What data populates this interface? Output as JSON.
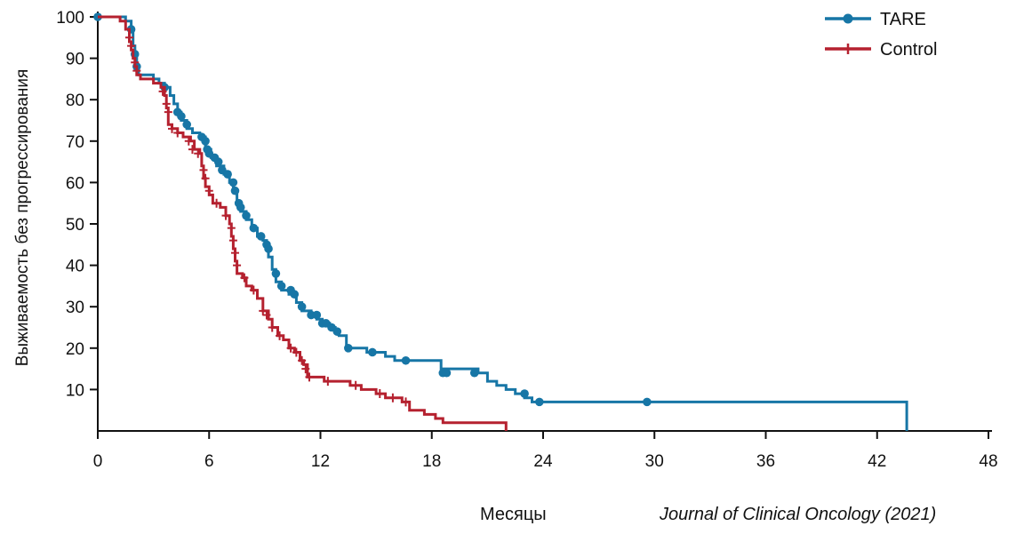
{
  "chart_data": {
    "type": "line",
    "subtype": "kaplan-meier",
    "ylabel": "Выживаемость без прогрессирования",
    "xlabel": "Месяцы",
    "citation": "Journal of Clinical Oncology (2021)",
    "xlim": [
      0,
      48
    ],
    "ylim": [
      0,
      100
    ],
    "xticks": [
      0,
      6,
      12,
      18,
      24,
      30,
      36,
      42,
      48
    ],
    "yticks": [
      10,
      20,
      30,
      40,
      50,
      60,
      70,
      80,
      90,
      100
    ],
    "grid": false,
    "legend_position": "top-right",
    "colors": {
      "TARE": "#1776a6",
      "Control": "#b5212f"
    },
    "series": [
      {
        "name": "TARE",
        "marker": "circle",
        "points": [
          [
            0,
            100
          ],
          [
            1.5,
            99
          ],
          [
            1.8,
            97
          ],
          [
            1.9,
            93
          ],
          [
            2.0,
            90
          ],
          [
            2.1,
            88
          ],
          [
            2.2,
            86
          ],
          [
            3.0,
            85
          ],
          [
            3.3,
            84
          ],
          [
            3.6,
            83
          ],
          [
            3.9,
            81
          ],
          [
            4.1,
            79
          ],
          [
            4.3,
            77
          ],
          [
            4.5,
            75
          ],
          [
            4.8,
            73
          ],
          [
            5.1,
            72
          ],
          [
            5.5,
            71
          ],
          [
            5.8,
            68
          ],
          [
            6.1,
            66
          ],
          [
            6.4,
            64
          ],
          [
            6.8,
            62
          ],
          [
            7.1,
            60
          ],
          [
            7.3,
            58
          ],
          [
            7.5,
            55
          ],
          [
            7.7,
            53
          ],
          [
            8.0,
            51
          ],
          [
            8.3,
            49
          ],
          [
            8.6,
            47
          ],
          [
            8.9,
            46
          ],
          [
            9.1,
            44
          ],
          [
            9.2,
            42
          ],
          [
            9.4,
            39
          ],
          [
            9.6,
            36
          ],
          [
            9.9,
            34
          ],
          [
            10.3,
            33
          ],
          [
            10.7,
            31
          ],
          [
            11.0,
            29
          ],
          [
            11.5,
            28
          ],
          [
            11.8,
            27
          ],
          [
            12.1,
            26
          ],
          [
            12.5,
            25
          ],
          [
            12.8,
            24
          ],
          [
            13.0,
            23
          ],
          [
            13.4,
            20
          ],
          [
            14.5,
            19
          ],
          [
            15.5,
            18
          ],
          [
            16.0,
            17
          ],
          [
            18.5,
            15
          ],
          [
            20.5,
            14
          ],
          [
            21.0,
            12
          ],
          [
            21.5,
            11
          ],
          [
            22.0,
            10
          ],
          [
            22.5,
            9
          ],
          [
            23.0,
            8
          ],
          [
            23.4,
            7
          ],
          [
            43.6,
            7
          ],
          [
            43.6,
            0
          ]
        ],
        "censored": [
          [
            0,
            100
          ],
          [
            1.8,
            97
          ],
          [
            2.0,
            91
          ],
          [
            2.1,
            88
          ],
          [
            3.6,
            83
          ],
          [
            4.3,
            77
          ],
          [
            4.5,
            76
          ],
          [
            4.8,
            74
          ],
          [
            5.6,
            71
          ],
          [
            5.8,
            70
          ],
          [
            5.9,
            68
          ],
          [
            6.0,
            67
          ],
          [
            6.3,
            66
          ],
          [
            6.5,
            65
          ],
          [
            6.7,
            63
          ],
          [
            7.0,
            62
          ],
          [
            7.3,
            60
          ],
          [
            7.4,
            58
          ],
          [
            7.6,
            55
          ],
          [
            7.7,
            54
          ],
          [
            8.0,
            52
          ],
          [
            8.4,
            49
          ],
          [
            8.8,
            47
          ],
          [
            9.1,
            45
          ],
          [
            9.2,
            44
          ],
          [
            9.6,
            38
          ],
          [
            9.9,
            35
          ],
          [
            10.4,
            34
          ],
          [
            10.6,
            33
          ],
          [
            11.0,
            30
          ],
          [
            11.5,
            28
          ],
          [
            11.8,
            28
          ],
          [
            12.1,
            26
          ],
          [
            12.3,
            26
          ],
          [
            12.6,
            25
          ],
          [
            12.9,
            24
          ],
          [
            13.5,
            20
          ],
          [
            14.8,
            19
          ],
          [
            16.6,
            17
          ],
          [
            18.6,
            14
          ],
          [
            18.8,
            14
          ],
          [
            20.3,
            14
          ],
          [
            23.0,
            9
          ],
          [
            23.8,
            7
          ],
          [
            29.6,
            7
          ]
        ]
      },
      {
        "name": "Control",
        "marker": "plus",
        "points": [
          [
            0,
            100
          ],
          [
            1.2,
            99
          ],
          [
            1.5,
            97
          ],
          [
            1.7,
            94
          ],
          [
            1.8,
            92
          ],
          [
            1.9,
            90
          ],
          [
            2.0,
            88
          ],
          [
            2.1,
            86
          ],
          [
            2.3,
            85
          ],
          [
            3.0,
            84
          ],
          [
            3.4,
            83
          ],
          [
            3.6,
            81
          ],
          [
            3.7,
            78
          ],
          [
            3.8,
            74
          ],
          [
            4.0,
            73
          ],
          [
            4.3,
            72
          ],
          [
            4.6,
            71
          ],
          [
            5.0,
            70
          ],
          [
            5.2,
            68
          ],
          [
            5.5,
            67
          ],
          [
            5.6,
            64
          ],
          [
            5.7,
            61
          ],
          [
            5.8,
            59
          ],
          [
            6.0,
            57
          ],
          [
            6.2,
            55
          ],
          [
            6.6,
            54
          ],
          [
            6.9,
            52
          ],
          [
            7.1,
            50
          ],
          [
            7.2,
            47
          ],
          [
            7.3,
            44
          ],
          [
            7.4,
            41
          ],
          [
            7.5,
            38
          ],
          [
            7.8,
            37
          ],
          [
            8.0,
            35
          ],
          [
            8.3,
            34
          ],
          [
            8.6,
            32
          ],
          [
            8.9,
            29
          ],
          [
            9.2,
            27
          ],
          [
            9.4,
            25
          ],
          [
            9.7,
            23
          ],
          [
            10.0,
            22
          ],
          [
            10.3,
            20
          ],
          [
            10.6,
            19
          ],
          [
            10.9,
            17
          ],
          [
            11.1,
            16
          ],
          [
            11.3,
            13
          ],
          [
            12.2,
            12
          ],
          [
            13.6,
            11
          ],
          [
            14.2,
            10
          ],
          [
            15.0,
            9
          ],
          [
            15.5,
            8
          ],
          [
            16.4,
            7
          ],
          [
            16.8,
            5
          ],
          [
            17.6,
            4
          ],
          [
            18.2,
            3
          ],
          [
            18.6,
            2
          ],
          [
            22.0,
            2
          ],
          [
            22.0,
            0
          ]
        ],
        "censored": [
          [
            1.7,
            95
          ],
          [
            1.8,
            93
          ],
          [
            2.0,
            89
          ],
          [
            2.1,
            87
          ],
          [
            3.5,
            82
          ],
          [
            3.7,
            79
          ],
          [
            3.8,
            77
          ],
          [
            4.0,
            73
          ],
          [
            4.3,
            72
          ],
          [
            4.9,
            70
          ],
          [
            5.1,
            68
          ],
          [
            5.4,
            67
          ],
          [
            5.7,
            63
          ],
          [
            5.8,
            61
          ],
          [
            6.0,
            58
          ],
          [
            6.4,
            55
          ],
          [
            6.9,
            52
          ],
          [
            7.2,
            49
          ],
          [
            7.3,
            46
          ],
          [
            7.4,
            43
          ],
          [
            7.5,
            40
          ],
          [
            7.9,
            37
          ],
          [
            8.4,
            34
          ],
          [
            8.9,
            29
          ],
          [
            9.1,
            28
          ],
          [
            9.4,
            25
          ],
          [
            9.8,
            23
          ],
          [
            10.4,
            20
          ],
          [
            10.7,
            19
          ],
          [
            11.0,
            17
          ],
          [
            11.2,
            15
          ],
          [
            11.4,
            13
          ],
          [
            12.4,
            12
          ],
          [
            13.9,
            11
          ],
          [
            15.2,
            9
          ],
          [
            15.9,
            8
          ],
          [
            16.6,
            7
          ]
        ]
      }
    ]
  }
}
